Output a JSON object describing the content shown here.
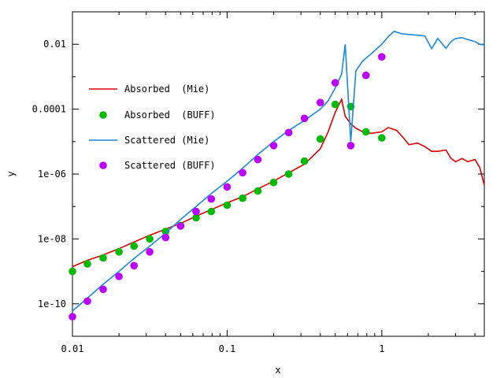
{
  "chart_data": {
    "type": "line",
    "title": "",
    "xlabel": "x",
    "ylabel": "y",
    "x_scale": "log",
    "y_scale": "log",
    "xlim": [
      0.01,
      4.6
    ],
    "ylim": [
      1e-11,
      0.1
    ],
    "x_ticks": [
      {
        "value": 0.01,
        "label": "0.01"
      },
      {
        "value": 0.1,
        "label": "0.1"
      },
      {
        "value": 1,
        "label": "1"
      }
    ],
    "y_ticks": [
      {
        "value": 1e-10,
        "label": "1e-10"
      },
      {
        "value": 1e-08,
        "label": "1e-08"
      },
      {
        "value": 1e-06,
        "label": "1e-06"
      },
      {
        "value": 0.0001,
        "label": "0.0001"
      },
      {
        "value": 0.01,
        "label": "0.01"
      }
    ],
    "grid": false,
    "legend_position": "left",
    "series": [
      {
        "name": "Absorbed  (Mie)",
        "style": "line",
        "color": "#dd0000",
        "x": [
          0.01,
          0.0125,
          0.0158,
          0.02,
          0.025,
          0.0316,
          0.04,
          0.05,
          0.063,
          0.079,
          0.1,
          0.126,
          0.158,
          0.2,
          0.25,
          0.316,
          0.4,
          0.45,
          0.5,
          0.55,
          0.58,
          0.63,
          0.68,
          0.75,
          0.85,
          1.0,
          1.1,
          1.25,
          1.4,
          1.5,
          1.7,
          1.9,
          2.1,
          2.3,
          2.6,
          2.8,
          3.0,
          3.3,
          3.6,
          4.0,
          4.3,
          4.6
        ],
        "y": [
          1.4e-09,
          2.2e-09,
          3.2e-09,
          5e-09,
          8e-09,
          1.3e-08,
          2e-08,
          3e-08,
          5e-08,
          8e-08,
          1.3e-07,
          2e-07,
          3.5e-07,
          6e-07,
          1.1e-06,
          2e-06,
          6e-06,
          2e-05,
          8e-05,
          0.0002,
          6e-05,
          3.5e-05,
          2.6e-05,
          2e-05,
          1.8e-05,
          2e-05,
          2.7e-05,
          2.2e-05,
          1.2e-05,
          8e-06,
          9e-06,
          7e-06,
          5e-06,
          5e-06,
          5.5e-06,
          3e-06,
          2.4e-06,
          3e-06,
          2.4e-06,
          2.8e-06,
          1.6e-06,
          4.5e-07
        ]
      },
      {
        "name": "Absorbed  (BUFF)",
        "style": "points",
        "color": "#00bb00",
        "x": [
          0.01,
          0.0125,
          0.0158,
          0.02,
          0.025,
          0.0316,
          0.04,
          0.05,
          0.063,
          0.079,
          0.1,
          0.126,
          0.158,
          0.2,
          0.25,
          0.316,
          0.4,
          0.5,
          0.63,
          0.79,
          1.0
        ],
        "y": [
          1e-09,
          1.7e-09,
          2.6e-09,
          4e-09,
          6e-09,
          1e-08,
          1.7e-08,
          2.6e-08,
          4.5e-08,
          7e-08,
          1.1e-07,
          1.8e-07,
          3e-07,
          5.5e-07,
          1e-06,
          2.5e-06,
          1.2e-05,
          0.00014,
          0.00012,
          2e-05,
          1.3e-05
        ]
      },
      {
        "name": "Scattered (Mie)",
        "style": "line",
        "color": "#1a88dd",
        "x": [
          0.01,
          0.0125,
          0.0158,
          0.02,
          0.025,
          0.0316,
          0.04,
          0.05,
          0.063,
          0.079,
          0.1,
          0.126,
          0.158,
          0.2,
          0.25,
          0.316,
          0.4,
          0.45,
          0.5,
          0.55,
          0.58,
          0.63,
          0.68,
          0.75,
          0.85,
          1.0,
          1.1,
          1.2,
          1.35,
          1.5,
          1.7,
          1.9,
          2.1,
          2.3,
          2.6,
          2.8,
          3.0,
          3.3,
          3.6,
          4.0,
          4.3,
          4.6
        ],
        "y": [
          6e-11,
          1.5e-10,
          4e-10,
          1e-09,
          2.5e-09,
          6e-09,
          1.5e-08,
          4e-08,
          1e-07,
          2.5e-07,
          6e-07,
          1.5e-06,
          4e-06,
          1e-05,
          2.2e-05,
          4.5e-05,
          0.0001,
          0.00018,
          0.00045,
          0.0012,
          0.01,
          1e-05,
          0.0015,
          0.003,
          0.005,
          0.01,
          0.017,
          0.025,
          0.021,
          0.02,
          0.019,
          0.018,
          0.0073,
          0.015,
          0.0075,
          0.012,
          0.015,
          0.016,
          0.014,
          0.012,
          0.01,
          0.0095
        ]
      },
      {
        "name": "Scattered (BUFF)",
        "style": "points",
        "color": "#bb00ff",
        "x": [
          0.01,
          0.0125,
          0.0158,
          0.02,
          0.025,
          0.0316,
          0.04,
          0.05,
          0.063,
          0.079,
          0.1,
          0.126,
          0.158,
          0.2,
          0.25,
          0.316,
          0.4,
          0.5,
          0.63,
          0.79,
          1.0
        ],
        "y": [
          4e-11,
          1.2e-10,
          2.8e-10,
          7e-10,
          1.5e-09,
          4e-09,
          1.1e-08,
          2.5e-08,
          7e-08,
          1.7e-07,
          4e-07,
          1.1e-06,
          2.8e-06,
          7.5e-06,
          1.9e-05,
          5.2e-05,
          0.00016,
          0.00065,
          7.5e-06,
          0.0011,
          0.0041
        ]
      }
    ]
  }
}
